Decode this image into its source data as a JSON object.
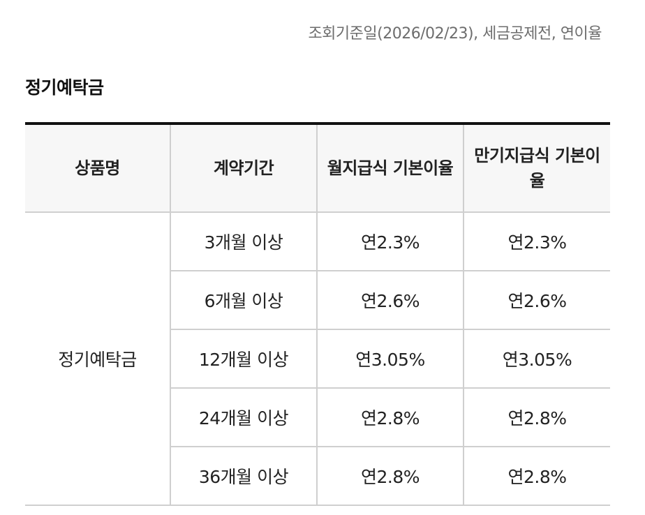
{
  "query_note": "조회기준일(2026/02/23), 세금공제전, 연이율",
  "section_title": "정기예탁금",
  "table": {
    "headers": {
      "product": "상품명",
      "period": "계약기간",
      "monthly_rate": "월지급식 기본이율",
      "maturity_rate": "만기지급식 기본이율"
    },
    "product_name": "정기예탁금",
    "rows": [
      {
        "period": "3개월 이상",
        "monthly_rate": "연2.3%",
        "maturity_rate": "연2.3%"
      },
      {
        "period": "6개월 이상",
        "monthly_rate": "연2.6%",
        "maturity_rate": "연2.6%"
      },
      {
        "period": "12개월 이상",
        "monthly_rate": "연3.05%",
        "maturity_rate": "연3.05%"
      },
      {
        "period": "24개월 이상",
        "monthly_rate": "연2.8%",
        "maturity_rate": "연2.8%"
      },
      {
        "period": "36개월 이상",
        "monthly_rate": "연2.8%",
        "maturity_rate": "연2.8%"
      }
    ]
  }
}
